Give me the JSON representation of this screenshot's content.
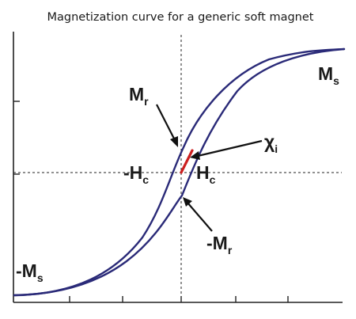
{
  "figure": {
    "title": "Magnetization curve for a generic soft magnet",
    "labels": {
      "ms_main": "M",
      "ms_sub": "s",
      "neg_ms_main": "-M",
      "neg_ms_sub": "s",
      "mr_main": "M",
      "mr_sub": "r",
      "neg_mr_main": "-M",
      "neg_mr_sub": "r",
      "hc_main": "H",
      "hc_sub": "c",
      "neg_hc_main": "-H",
      "neg_hc_sub": "c",
      "chi_main": "χ",
      "chi_sub": "i"
    },
    "colors": {
      "loop": "#2a2a78",
      "initial_susceptibility": "#cc1f1f",
      "text": "#1a1a1a"
    }
  }
}
